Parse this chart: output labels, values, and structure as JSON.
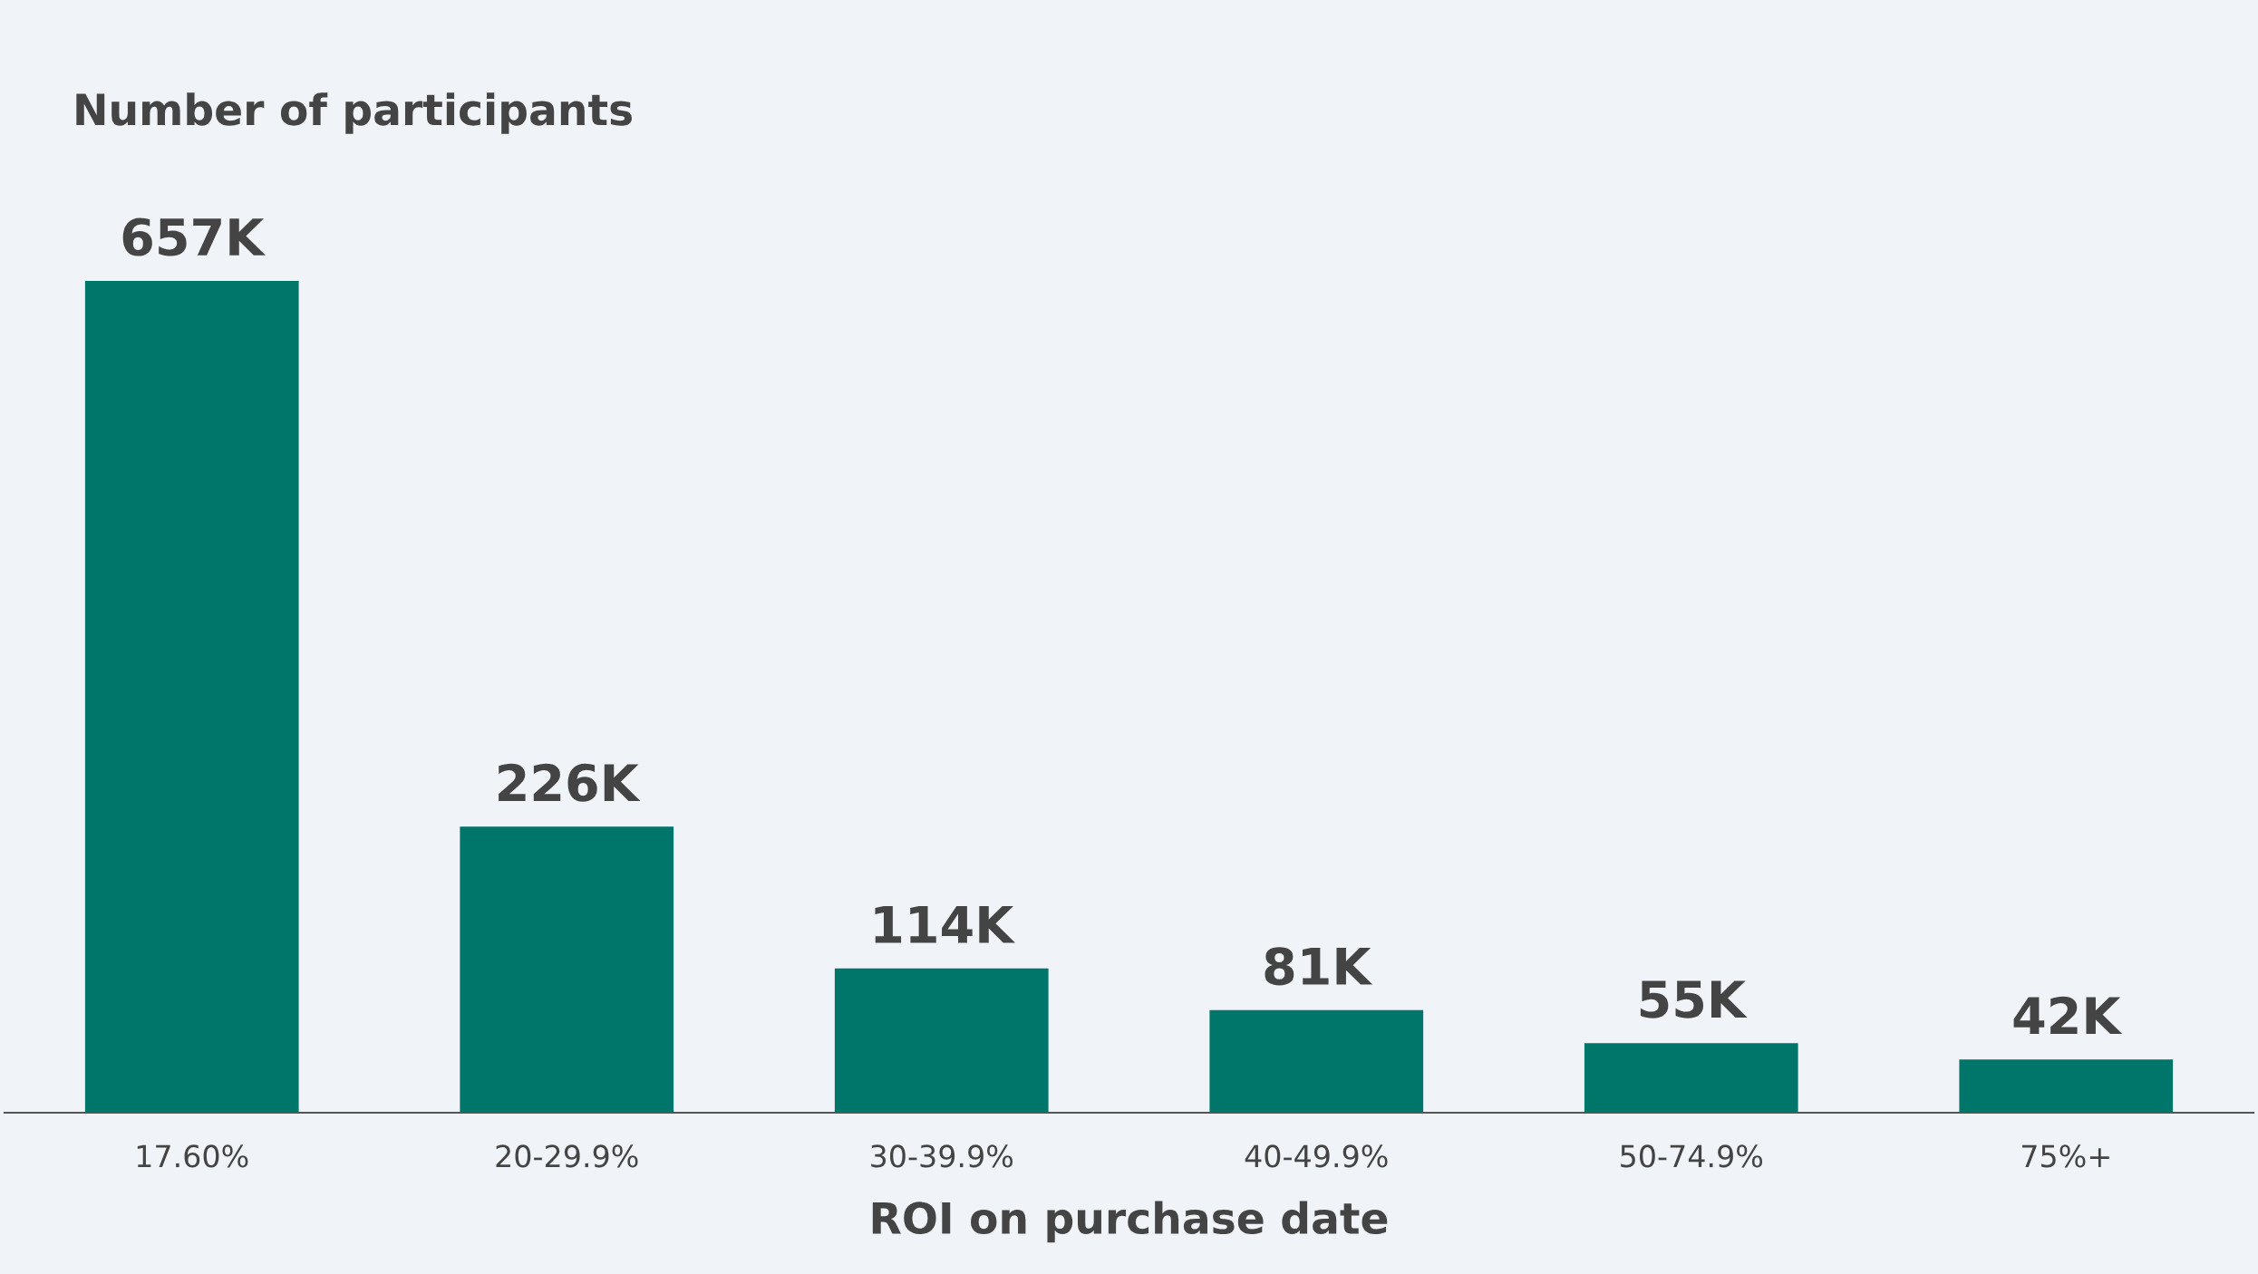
{
  "chart_data": {
    "type": "bar",
    "ylabel": "Number of participants",
    "xlabel": "ROI on purchase date",
    "categories": [
      "17.60%",
      "20-29.9%",
      "30-39.9%",
      "40-49.9%",
      "50-74.9%",
      "75%+"
    ],
    "values": [
      657,
      226,
      114,
      81,
      55,
      42
    ],
    "value_labels": [
      "657K",
      "226K",
      "114K",
      "81K",
      "55K",
      "42K"
    ],
    "color": "#00756a",
    "grid": false,
    "legend": false
  }
}
